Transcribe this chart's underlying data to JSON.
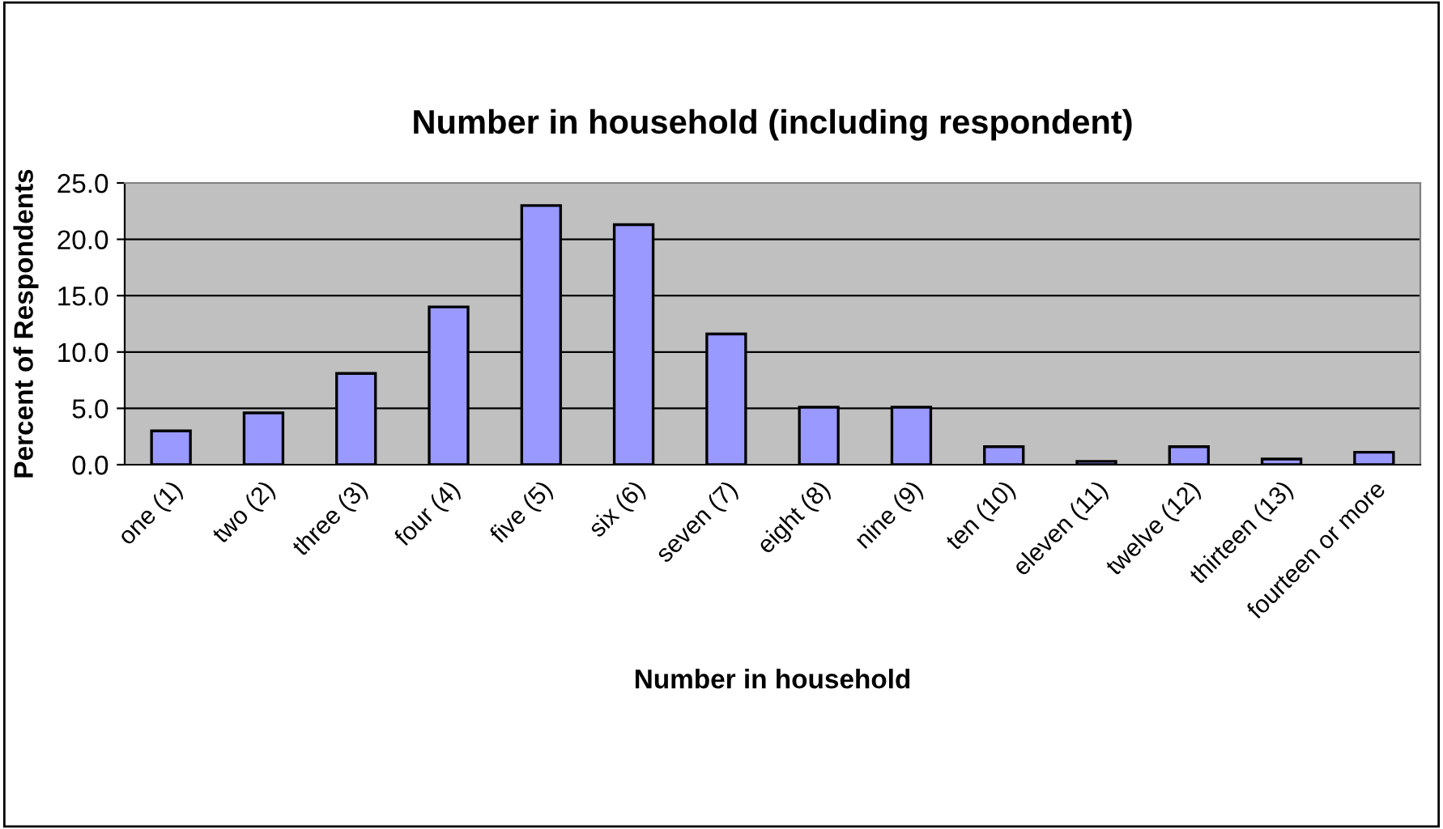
{
  "chart_data": {
    "type": "bar",
    "title": "Number in household (including respondent)",
    "xlabel": "Number in household",
    "ylabel": "Percent of Respondents",
    "categories": [
      "one (1)",
      "two (2)",
      "three (3)",
      "four (4)",
      "five (5)",
      "six (6)",
      "seven (7)",
      "eight (8)",
      "nine (9)",
      "ten (10)",
      "eleven (11)",
      "twelve (12)",
      "thirteen (13)",
      "fourteen or more"
    ],
    "values": [
      3.0,
      4.6,
      8.1,
      14.0,
      23.0,
      21.3,
      11.6,
      5.1,
      5.1,
      1.6,
      0.3,
      1.6,
      0.5,
      1.1
    ],
    "color": "#9999ff",
    "ylim": [
      0,
      25
    ],
    "yticks": [
      {
        "value": 0,
        "label": "0.0"
      },
      {
        "value": 5,
        "label": "5.0"
      },
      {
        "value": 10,
        "label": "10.0"
      },
      {
        "value": 15,
        "label": "15.0"
      },
      {
        "value": 20,
        "label": "20.0"
      },
      {
        "value": 25,
        "label": "25.0"
      }
    ],
    "grid": "y",
    "legend": false
  }
}
